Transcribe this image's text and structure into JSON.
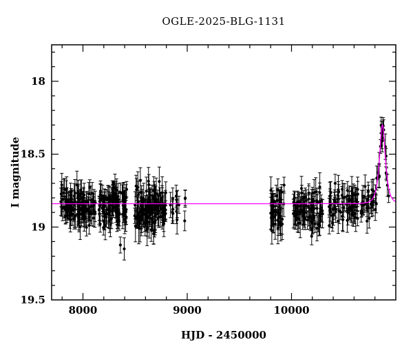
{
  "chart_data": {
    "type": "scatter",
    "title": "OGLE-2025-BLG-1131",
    "xlabel": "HJD - 2450000",
    "ylabel": "I magnitude",
    "xlim": [
      7700,
      11000
    ],
    "ylim": [
      17.75,
      19.5
    ],
    "y_axis_inverted": true,
    "grid": false,
    "background": "#ffffff",
    "point_color": "#000000",
    "model_color": "#ff00ff",
    "x_ticks": {
      "major": [
        8000,
        9000,
        10000
      ],
      "labels": [
        "8000",
        "9000",
        "10000"
      ],
      "minor_step": 200
    },
    "y_ticks": {
      "major": [
        18,
        18.5,
        19,
        19.5
      ],
      "labels": [
        "18",
        "18.5",
        "19",
        "19.5"
      ],
      "minor_step": 0.1
    },
    "baseline_mag": 18.84,
    "model": {
      "type": "paczynski-microlensing",
      "t0": 10872,
      "tE": 40,
      "u0": 0.72,
      "baseline_mag": 18.84,
      "peak_mag": 18.3
    },
    "seasons": [
      {
        "x": [
          7785,
          8120
        ],
        "n": 110,
        "mean": 18.86,
        "sigma": 0.065,
        "err": [
          0.05,
          0.05
        ]
      },
      {
        "x": [
          8155,
          8420
        ],
        "n": 100,
        "mean": 18.85,
        "sigma": 0.07,
        "err": [
          0.05,
          0.05
        ]
      },
      {
        "x": [
          8490,
          8800
        ],
        "n": 120,
        "mean": 18.87,
        "sigma": 0.08,
        "err": [
          0.05,
          0.06
        ]
      },
      {
        "x": [
          8835,
          8985
        ],
        "n": 14,
        "mean": 18.85,
        "sigma": 0.07,
        "err": [
          0.05,
          0.05
        ]
      },
      {
        "x": [
          9800,
          9930
        ],
        "n": 45,
        "mean": 18.86,
        "sigma": 0.075,
        "err": [
          0.05,
          0.06
        ]
      },
      {
        "x": [
          10000,
          10300
        ],
        "n": 80,
        "mean": 18.87,
        "sigma": 0.07,
        "err": [
          0.05,
          0.05
        ]
      },
      {
        "x": [
          10360,
          10640
        ],
        "n": 70,
        "mean": 18.85,
        "sigma": 0.065,
        "err": [
          0.05,
          0.05
        ]
      },
      {
        "x": [
          10660,
          10960
        ],
        "n": 48,
        "follow_model": true,
        "sigma": 0.055,
        "err": [
          0.04,
          0.05
        ]
      }
    ],
    "seed": 42
  }
}
